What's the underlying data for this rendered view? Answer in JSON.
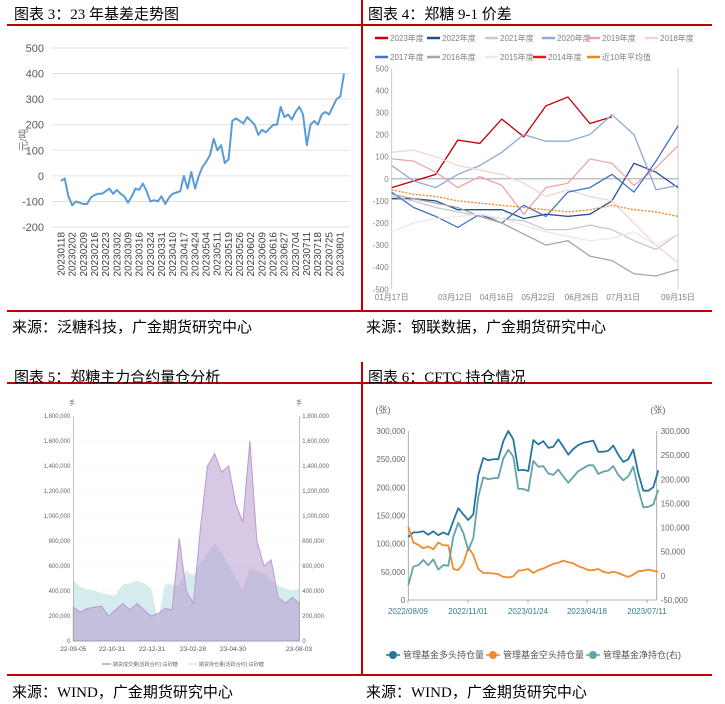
{
  "panels": [
    {
      "title": "图表 3：23 年基差走势图",
      "source": "来源：泛糖科技，广金期货研究中心"
    },
    {
      "title": "图表 4：郑糖 9-1 价差",
      "source": "来源：钢联数据，广金期货研究中心"
    },
    {
      "title": "图表 5：郑糖主力合约量仓分析",
      "source": "来源：WIND，广金期货研究中心"
    },
    {
      "title": "图表 6：CFTC 持仓情况",
      "source": "来源：WIND，广金期货研究中心"
    }
  ],
  "chart_data": [
    {
      "type": "line",
      "ylabel": "元/吨",
      "ylim": [
        -200,
        500
      ],
      "y_ticks": [
        "500",
        "400",
        "300",
        "200",
        "100",
        "0",
        "-100",
        "-200"
      ],
      "grid": true,
      "x_tick_labels": [
        "20230118",
        "20230202",
        "20230209",
        "20230216",
        "20230223",
        "20230302",
        "20230309",
        "20230316",
        "20230324",
        "20230331",
        "20230410",
        "20230417",
        "20230424",
        "20230504",
        "20230511",
        "20230519",
        "20230526",
        "20230602",
        "20230609",
        "20230616",
        "20230627",
        "20230704",
        "20230711",
        "20230718",
        "20230725",
        "20230801"
      ],
      "color": "#5B9BD5",
      "series": [
        {
          "values": [
            -20,
            -10,
            -80,
            -115,
            -100,
            -105,
            -110,
            -110,
            -85,
            -75,
            -70,
            -70,
            -60,
            -50,
            -70,
            -55,
            -70,
            -80,
            -105,
            -80,
            -50,
            -55,
            -30,
            -60,
            -100,
            -95,
            -100,
            -80,
            -110,
            -85,
            -70,
            -65,
            -60,
            0,
            -50,
            15,
            -50,
            0,
            35,
            55,
            80,
            145,
            100,
            120,
            50,
            65,
            215,
            225,
            215,
            205,
            230,
            215,
            200,
            160,
            180,
            170,
            185,
            200,
            200,
            270,
            230,
            240,
            220,
            250,
            270,
            240,
            120,
            200,
            215,
            200,
            240,
            250,
            240,
            270,
            300,
            310,
            400
          ]
        }
      ]
    },
    {
      "type": "line",
      "ylim": [
        -500,
        500
      ],
      "y_ticks": [
        "500",
        "400",
        "300",
        "200",
        "100",
        "0",
        "-100",
        "-200",
        "-300",
        "-400",
        "-500"
      ],
      "x_tick_labels": [
        "01月17日",
        "03月12日",
        "04月16日",
        "05月22日",
        "06月26日",
        "07月31日",
        "09月15日"
      ],
      "series": [
        {
          "name": "2023年度",
          "color": "#C00000",
          "values": [
            -40,
            -10,
            20,
            175,
            160,
            270,
            190,
            330,
            370,
            250,
            280,
            null,
            null,
            null
          ]
        },
        {
          "name": "2022年度",
          "color": "#1F4E99",
          "values": [
            -90,
            -90,
            -100,
            -140,
            -140,
            -140,
            -180,
            -160,
            -170,
            -160,
            -100,
            70,
            30,
            -40
          ]
        },
        {
          "name": "2021年度",
          "color": "#C8C8C8",
          "values": [
            -80,
            -100,
            -130,
            -150,
            -170,
            -180,
            -190,
            -230,
            -230,
            -210,
            -230,
            -280,
            -320,
            -250
          ]
        },
        {
          "name": "2020年度",
          "color": "#8EA9DB",
          "values": [
            60,
            -10,
            -40,
            20,
            60,
            120,
            200,
            170,
            170,
            200,
            290,
            200,
            -50,
            -30
          ]
        },
        {
          "name": "2019年度",
          "color": "#F4A0A8",
          "values": [
            90,
            80,
            30,
            -40,
            10,
            -30,
            -160,
            -40,
            -20,
            90,
            70,
            -30,
            50,
            150
          ]
        },
        {
          "name": "2018年度",
          "color": "#F3D3D6",
          "values": [
            120,
            130,
            100,
            60,
            40,
            20,
            -20,
            -80,
            -50,
            -80,
            -100,
            -200,
            -300,
            -380
          ]
        },
        {
          "name": "2017年度",
          "color": "#4472C4",
          "values": [
            -60,
            -130,
            -170,
            -220,
            -160,
            -200,
            -120,
            -170,
            -60,
            -40,
            20,
            -60,
            80,
            240
          ]
        },
        {
          "name": "2016年度",
          "color": "#A6A6A6",
          "values": [
            -70,
            -90,
            -110,
            -130,
            -170,
            -200,
            -250,
            -300,
            -280,
            -350,
            -370,
            -430,
            -440,
            -410
          ]
        },
        {
          "name": "2015年度",
          "color": "#F0E6E6",
          "values": [
            -240,
            -200,
            -180,
            -170,
            -160,
            -180,
            -210,
            -240,
            -260,
            -280,
            -270,
            -240,
            -300,
            -250
          ]
        },
        {
          "name": "2014年度",
          "color": "#E8141E",
          "values": []
        },
        {
          "name": "近10年平均值",
          "color": "#F58220",
          "dashed": true,
          "values": [
            -50,
            -70,
            -80,
            -100,
            -110,
            -120,
            -130,
            -140,
            -150,
            -140,
            -120,
            -140,
            -150,
            -170
          ]
        }
      ]
    },
    {
      "type": "area",
      "unit_left": "手",
      "unit_right": "手",
      "ylim": [
        0,
        1800000
      ],
      "y_ticks_left": [
        "1,800,000",
        "1,600,000",
        "1,400,000",
        "1,200,000",
        "1,000,000",
        "800,000",
        "600,000",
        "400,000",
        "200,000",
        "0"
      ],
      "y_ticks_right": [
        "1,800,000",
        "1,600,000",
        "1,400,000",
        "1,200,000",
        "1,000,000",
        "800,000",
        "600,000",
        "400,000",
        "200,000",
        "0"
      ],
      "x_tick_labels": [
        "22-09-05",
        "22-10-31",
        "22-12-31",
        "23-02-28",
        "23-04-30",
        "23-08-03"
      ],
      "series": [
        {
          "name": "期货持仓量(活跃合约):白砂糖",
          "color": "#CDE9EA",
          "values": [
            480000,
            430000,
            410000,
            400000,
            380000,
            370000,
            360000,
            450000,
            460000,
            480000,
            460000,
            420000,
            150000,
            450000,
            450000,
            440000,
            560000,
            520000,
            620000,
            700000,
            780000,
            700000,
            600000,
            500000,
            400000,
            580000,
            560000,
            540000,
            480000,
            440000,
            420000,
            400000,
            420000
          ]
        },
        {
          "name": "期货成交量(活跃合约):白砂糖",
          "color": "#B79BD0",
          "values": [
            270000,
            230000,
            260000,
            270000,
            280000,
            200000,
            250000,
            300000,
            250000,
            300000,
            250000,
            200000,
            220000,
            260000,
            250000,
            820000,
            400000,
            300000,
            900000,
            1400000,
            1500000,
            1350000,
            1400000,
            1100000,
            950000,
            1600000,
            800000,
            600000,
            650000,
            350000,
            300000,
            350000,
            300000
          ]
        }
      ]
    },
    {
      "type": "line",
      "unit_left": "(张)",
      "unit_right": "(张)",
      "ylim_left": [
        0,
        300000
      ],
      "ylim_right": [
        -50000,
        300000
      ],
      "y_ticks_left": [
        "300,000",
        "250,000",
        "200,000",
        "150,000",
        "100,000",
        "50,000",
        "0"
      ],
      "y_ticks_right": [
        "300,000",
        "250,000",
        "200,000",
        "150,000",
        "100,000",
        "50,000",
        "0",
        "-50,000"
      ],
      "x_tick_labels": [
        "2022/08/09",
        "2022/11/01",
        "2023/01/24",
        "2023/04/18",
        "2023/07/11"
      ],
      "series": [
        {
          "name": "管理基金多头持仓量",
          "color": "#23769F",
          "axis": "left",
          "values": [
            112000,
            120000,
            120000,
            122000,
            116000,
            122000,
            115000,
            120000,
            116000,
            140000,
            163000,
            152000,
            142000,
            152000,
            222000,
            252000,
            248000,
            250000,
            250000,
            282000,
            300000,
            285000,
            230000,
            231000,
            229000,
            284000,
            276000,
            282000,
            270000,
            272000,
            285000,
            272000,
            258000,
            268000,
            275000,
            279000,
            281000,
            283000,
            263000,
            263000,
            265000,
            274000,
            258000,
            245000,
            250000,
            267000,
            225000,
            194000,
            194000,
            200000,
            230000
          ]
        },
        {
          "name": "管理基金空头持仓量",
          "color": "#F28A2E",
          "axis": "left",
          "values": [
            130000,
            102000,
            98000,
            92000,
            95000,
            90000,
            102000,
            97000,
            97000,
            55000,
            53000,
            65000,
            93000,
            80000,
            55000,
            48000,
            48000,
            47000,
            46000,
            41000,
            40000,
            42000,
            52000,
            53000,
            55000,
            48000,
            53000,
            56000,
            60000,
            64000,
            66000,
            70000,
            67000,
            65000,
            60000,
            57000,
            53000,
            53000,
            55000,
            50000,
            48000,
            50000,
            48000,
            44000,
            41000,
            45000,
            51000,
            52000,
            54000,
            52000,
            50000
          ]
        },
        {
          "name": "管理基金净持仓(右)",
          "color": "#62A4A9",
          "axis": "right",
          "values": [
            -19000,
            19000,
            22000,
            33000,
            22000,
            34000,
            13000,
            22000,
            21000,
            81000,
            110000,
            89000,
            53000,
            78000,
            164000,
            204000,
            200000,
            202000,
            203000,
            243000,
            261000,
            247000,
            180000,
            180000,
            176000,
            238000,
            226000,
            227000,
            212000,
            209000,
            220000,
            206000,
            193000,
            205000,
            217000,
            223000,
            229000,
            229000,
            211000,
            216000,
            218000,
            227000,
            209000,
            198000,
            206000,
            226000,
            180000,
            142000,
            143000,
            148000,
            178000
          ]
        }
      ]
    }
  ]
}
